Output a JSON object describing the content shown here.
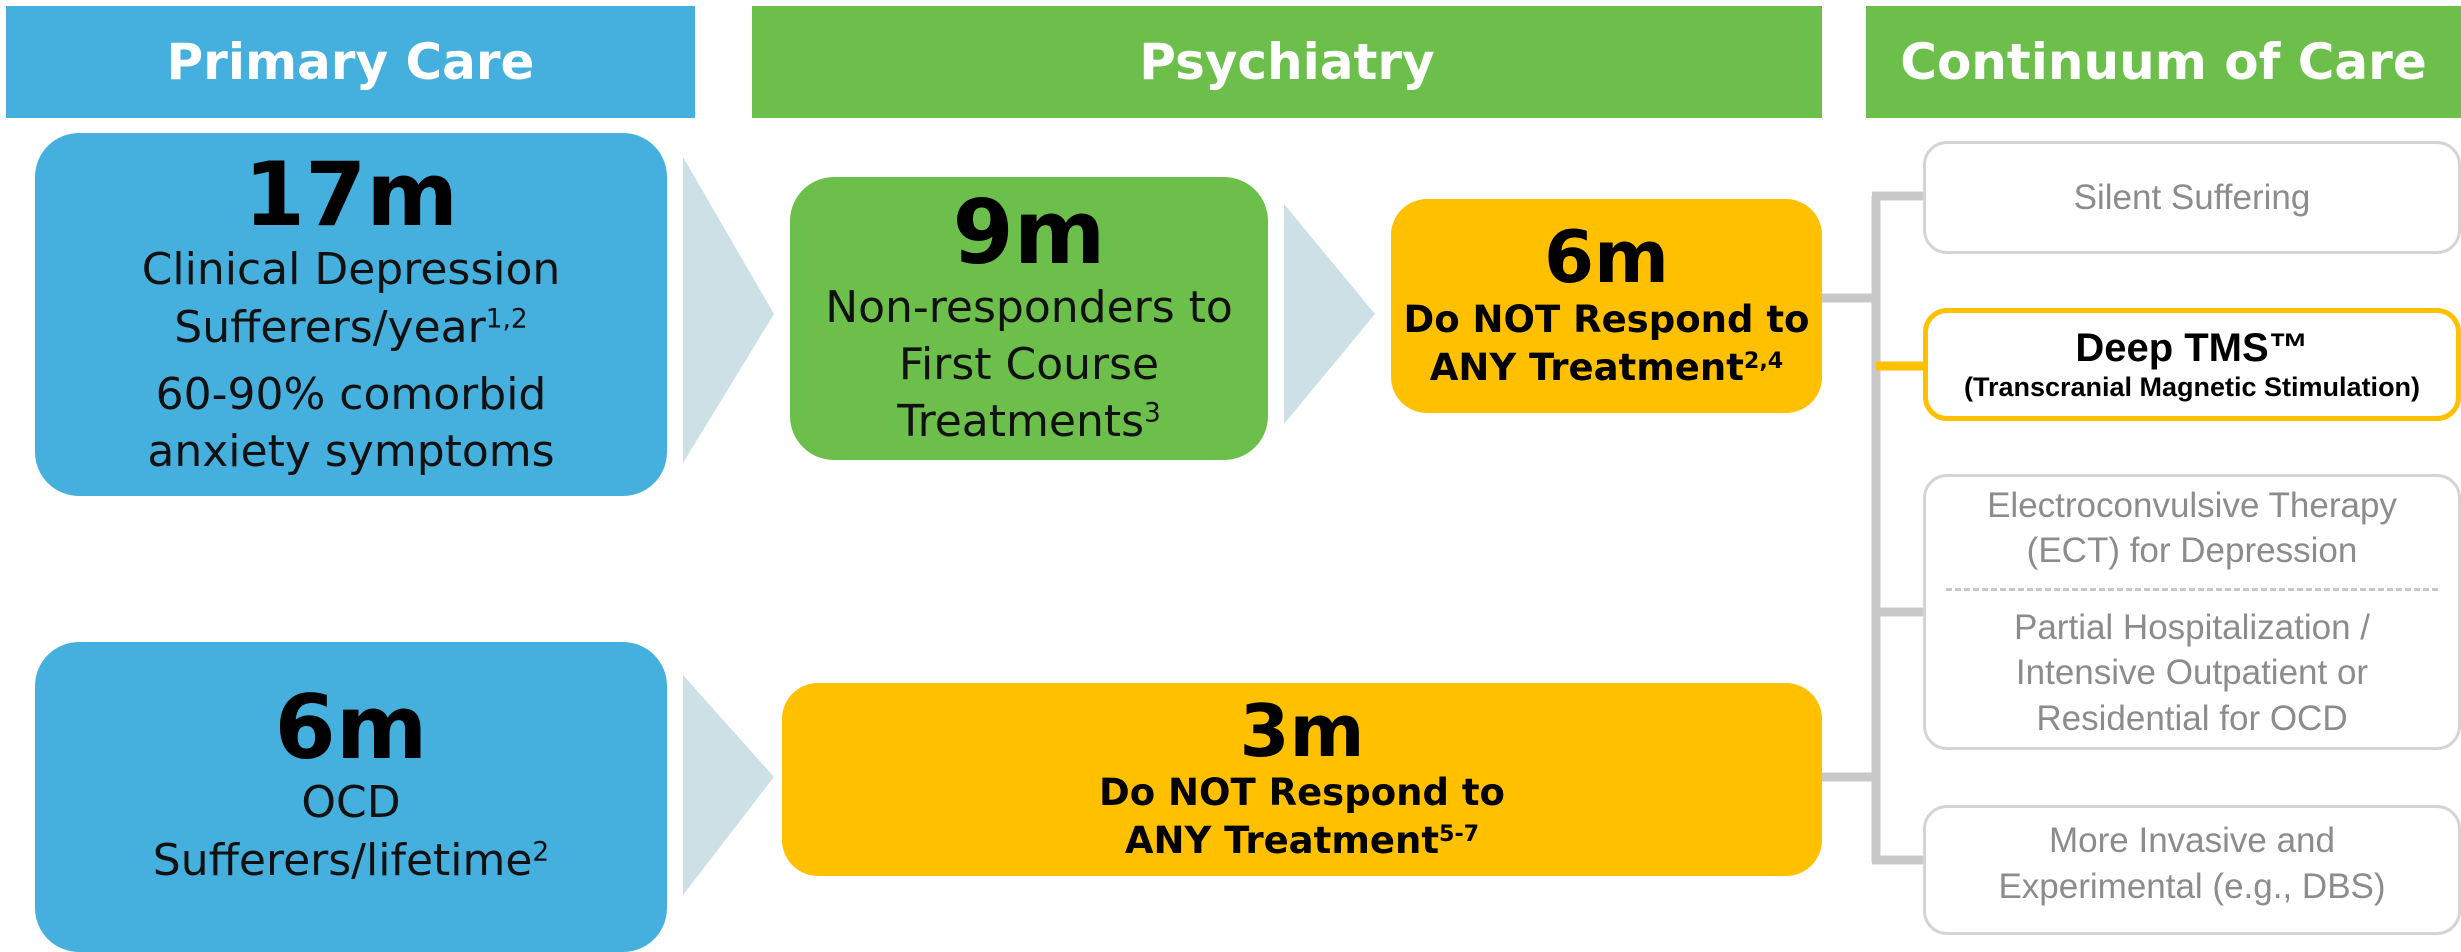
{
  "headers": {
    "primary": "Primary Care",
    "psychiatry": "Psychiatry",
    "continuum": "Continuum of Care"
  },
  "boxes": {
    "depression": {
      "figure": "17m",
      "label": "Clinical Depression",
      "label2": "Sufferers/year",
      "sup": "1,2",
      "note": "60-90% comorbid anxiety symptoms"
    },
    "nonresponders": {
      "figure": "9m",
      "label": "Non-responders to First Course Treatments",
      "sup": "3"
    },
    "dep_resistant": {
      "figure": "6m",
      "label": "Do NOT Respond to ANY Treatment",
      "sup": "2,4"
    },
    "ocd": {
      "figure": "6m",
      "label": "OCD",
      "label2": "Sufferers/lifetime",
      "sup": "2"
    },
    "ocd_resistant": {
      "figure": "3m",
      "label": "Do NOT Respond to ANY Treatment",
      "sup": "5-7"
    }
  },
  "continuum": [
    {
      "label": "Silent Suffering"
    },
    {
      "label": "Deep TMS™",
      "sub": "(Transcranial Magnetic Stimulation)"
    },
    {
      "label": "Electroconvulsive Therapy (ECT) for Depression",
      "label2": "Partial Hospitalization / Intensive Outpatient or Residential for OCD"
    },
    {
      "label": "More Invasive and Experimental (e.g., DBS)"
    }
  ]
}
